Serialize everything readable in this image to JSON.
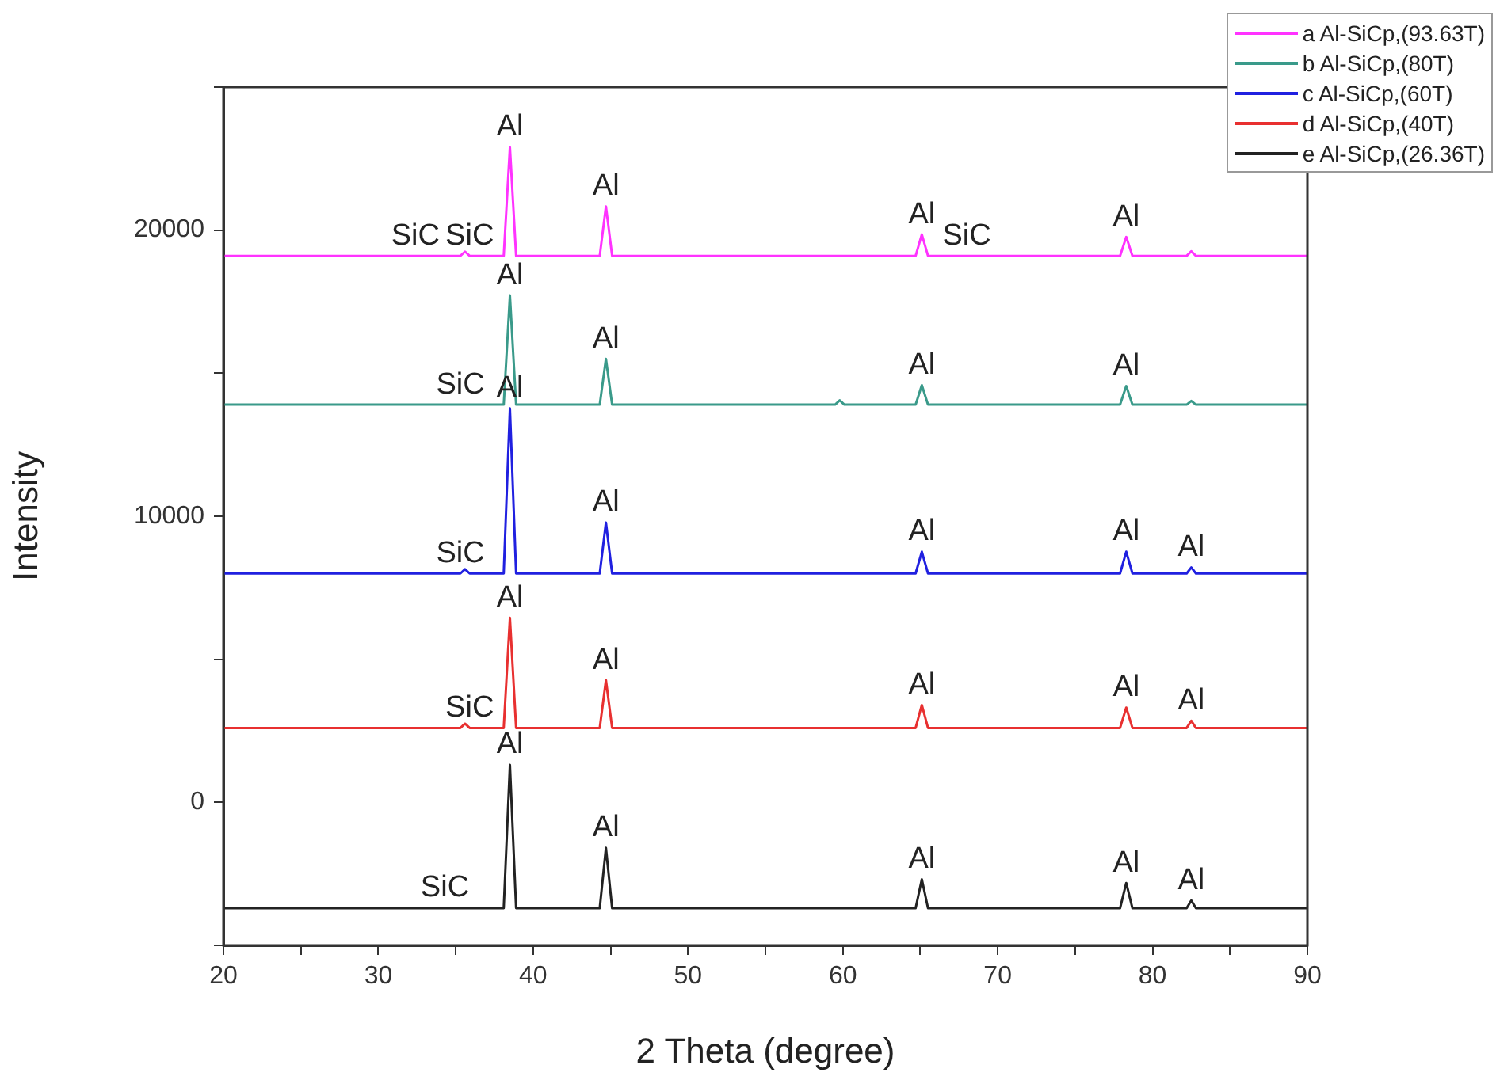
{
  "chart_data": {
    "type": "line",
    "xlabel": "2 Theta (degree)",
    "ylabel": "Intensity",
    "x": [
      20,
      32.4,
      34.3,
      35.3,
      35.6,
      35.9,
      38.1,
      38.5,
      38.9,
      44.3,
      44.7,
      45.1,
      59.5,
      59.8,
      60.1,
      64.7,
      65.1,
      65.5,
      68.0,
      77.9,
      78.3,
      78.7,
      82.2,
      82.5,
      82.8,
      90
    ],
    "series": [
      {
        "name": "a Al-SiCp,(93.63T)",
        "color": "#ff33ff",
        "values": [
          19100,
          19100,
          19100,
          19100,
          19250,
          19100,
          19100,
          22900,
          19100,
          19100,
          20830,
          19100,
          19100,
          19100,
          19100,
          19100,
          19850,
          19100,
          19100,
          19100,
          19760,
          19100,
          19100,
          19260,
          19100,
          19100
        ]
      },
      {
        "name": "b Al-SiCp,(80T)",
        "color": "#3a9a8a",
        "values": [
          13900,
          13900,
          13900,
          13900,
          13900,
          13900,
          13900,
          17720,
          13900,
          13900,
          15500,
          13900,
          13900,
          14050,
          13900,
          13900,
          14580,
          13900,
          13900,
          13900,
          14550,
          13900,
          13900,
          14030,
          13900,
          13900
        ]
      },
      {
        "name": "c Al-SiCp,(60T)",
        "color": "#2020e0",
        "values": [
          8000,
          8000,
          8000,
          8000,
          8150,
          8000,
          8000,
          13770,
          8000,
          8000,
          9780,
          8000,
          8000,
          8000,
          8000,
          8000,
          8760,
          8000,
          8000,
          8000,
          8760,
          8000,
          8000,
          8210,
          8000,
          8000
        ]
      },
      {
        "name": "d Al-SiCp,(40T)",
        "color": "#e83030",
        "values": [
          2600,
          2600,
          2600,
          2600,
          2750,
          2600,
          2600,
          6450,
          2600,
          2600,
          4270,
          2600,
          2600,
          2600,
          2600,
          2600,
          3400,
          2600,
          2600,
          2600,
          3310,
          2600,
          2600,
          2850,
          2600,
          2600
        ]
      },
      {
        "name": "e Al-SiCp,(26.36T)",
        "color": "#222222",
        "values": [
          -3700,
          -3700,
          -3700,
          -3700,
          -3700,
          -3700,
          -3700,
          1310,
          -3700,
          -3700,
          -1590,
          -3700,
          -3700,
          -3700,
          -3700,
          -3700,
          -2690,
          -3700,
          -3700,
          -3700,
          -2820,
          -3700,
          -3700,
          -3430,
          -3700,
          -3700
        ]
      }
    ],
    "xlim": [
      20,
      90
    ],
    "xticks": [
      20,
      {
        "value": 25,
        "label": null
      },
      30,
      {
        "value": 35,
        "label": null
      },
      40,
      {
        "value": 45,
        "label": null
      },
      50,
      {
        "value": 55,
        "label": null
      },
      60,
      {
        "value": 65,
        "label": null
      },
      70,
      {
        "value": 75,
        "label": null
      },
      80,
      {
        "value": 85,
        "label": null
      },
      90
    ],
    "ylim": [
      -5000,
      25000
    ],
    "yticks": [
      {
        "value": -5000,
        "label": null
      },
      0,
      {
        "value": 5000,
        "label": null
      },
      10000,
      {
        "value": 15000,
        "label": null
      },
      20000,
      {
        "value": 25000,
        "label": null
      }
    ],
    "legend": "top right",
    "marker": "none",
    "annotations": [
      {
        "text": "Al",
        "x": 38.5,
        "y": 22900
      },
      {
        "text": "Al",
        "x": 44.7,
        "y": 20830
      },
      {
        "text": "SiC",
        "x": 32.4,
        "y": 19100
      },
      {
        "text": "SiC",
        "x": 35.9,
        "y": 19100
      },
      {
        "text": "Al",
        "x": 65.1,
        "y": 19850
      },
      {
        "text": "SiC",
        "x": 68.0,
        "y": 19100
      },
      {
        "text": "Al",
        "x": 78.3,
        "y": 19760
      },
      {
        "text": "Al",
        "x": 38.5,
        "y": 17720
      },
      {
        "text": "Al",
        "x": 44.7,
        "y": 15500
      },
      {
        "text": "SiC",
        "x": 35.3,
        "y": 13900
      },
      {
        "text": "Al",
        "x": 65.1,
        "y": 14580
      },
      {
        "text": "Al",
        "x": 78.3,
        "y": 14550
      },
      {
        "text": "Al",
        "x": 38.5,
        "y": 13770
      },
      {
        "text": "SiC",
        "x": 35.3,
        "y": 8000
      },
      {
        "text": "Al",
        "x": 44.7,
        "y": 9780
      },
      {
        "text": "Al",
        "x": 65.1,
        "y": 8760
      },
      {
        "text": "Al",
        "x": 78.3,
        "y": 8760
      },
      {
        "text": "Al",
        "x": 82.5,
        "y": 8210
      },
      {
        "text": "Al",
        "x": 38.5,
        "y": 6450
      },
      {
        "text": "SiC",
        "x": 35.9,
        "y": 2600
      },
      {
        "text": "Al",
        "x": 44.7,
        "y": 4270
      },
      {
        "text": "Al",
        "x": 65.1,
        "y": 3400
      },
      {
        "text": "Al",
        "x": 78.3,
        "y": 3310
      },
      {
        "text": "Al",
        "x": 82.5,
        "y": 2850
      },
      {
        "text": "Al",
        "x": 38.5,
        "y": 1310
      },
      {
        "text": "SiC",
        "x": 34.3,
        "y": -3700
      },
      {
        "text": "Al",
        "x": 44.7,
        "y": -1590
      },
      {
        "text": "Al",
        "x": 65.1,
        "y": -2690
      },
      {
        "text": "Al",
        "x": 78.3,
        "y": -2820
      },
      {
        "text": "Al",
        "x": 82.5,
        "y": -3430
      }
    ]
  }
}
